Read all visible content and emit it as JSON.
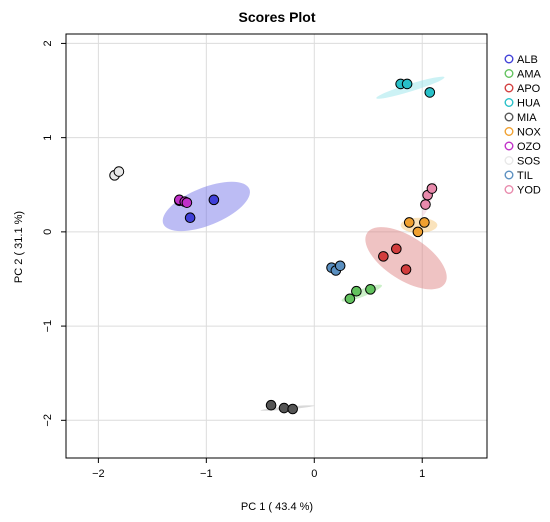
{
  "chart_data": {
    "type": "scatter",
    "title": "Scores Plot",
    "xlabel": "PC 1 ( 43.4 %)",
    "ylabel": "PC 2 ( 31.1 %)",
    "xlim": [
      -2.3,
      1.6
    ],
    "ylim": [
      -2.4,
      2.1
    ],
    "xticks": [
      -2,
      -1,
      0,
      1
    ],
    "yticks": [
      -2,
      -1,
      0,
      1,
      2
    ],
    "grid": true,
    "legend_position": "right",
    "series": [
      {
        "name": "ALB",
        "color": "#4040d8",
        "ellipse": {
          "cx": -1.0,
          "cy": 0.27,
          "rx": 0.43,
          "ry": 0.2,
          "angle": 22,
          "fill": "#6a6ae6"
        },
        "points": [
          [
            -1.25,
            0.33
          ],
          [
            -1.15,
            0.15
          ],
          [
            -0.93,
            0.34
          ]
        ]
      },
      {
        "name": "AMA",
        "color": "#62c25e",
        "ellipse": {
          "cx": 0.44,
          "cy": -0.65,
          "rx": 0.2,
          "ry": 0.04,
          "angle": 21,
          "fill": "#8bde84"
        },
        "points": [
          [
            0.33,
            -0.71
          ],
          [
            0.39,
            -0.63
          ],
          [
            0.52,
            -0.61
          ]
        ]
      },
      {
        "name": "APO",
        "color": "#d23d3d",
        "ellipse": {
          "cx": 0.85,
          "cy": -0.28,
          "rx": 0.43,
          "ry": 0.23,
          "angle": -33,
          "fill": "#dc7a7a"
        },
        "points": [
          [
            0.64,
            -0.26
          ],
          [
            0.76,
            -0.18
          ],
          [
            0.85,
            -0.4
          ]
        ]
      },
      {
        "name": "HUA",
        "color": "#28c0c8",
        "ellipse": {
          "cx": 0.89,
          "cy": 1.53,
          "rx": 0.33,
          "ry": 0.04,
          "angle": 17,
          "fill": "#8fe3e9"
        },
        "points": [
          [
            0.8,
            1.57
          ],
          [
            0.86,
            1.57
          ],
          [
            1.07,
            1.48
          ]
        ]
      },
      {
        "name": "MIA",
        "color": "#555555",
        "ellipse": {
          "cx": -0.25,
          "cy": -1.87,
          "rx": 0.25,
          "ry": 0.015,
          "angle": 5,
          "fill": "#aaaaaa"
        },
        "points": [
          [
            -0.4,
            -1.84
          ],
          [
            -0.28,
            -1.87
          ],
          [
            -0.2,
            -1.88
          ]
        ]
      },
      {
        "name": "NOX",
        "color": "#f0a030",
        "ellipse": {
          "cx": 0.97,
          "cy": 0.07,
          "rx": 0.17,
          "ry": 0.08,
          "angle": 0,
          "fill": "#f5c26a"
        },
        "points": [
          [
            0.88,
            0.1
          ],
          [
            0.96,
            0.0
          ],
          [
            1.02,
            0.1
          ]
        ]
      },
      {
        "name": "OZO",
        "color": "#c030c8",
        "ellipse": null,
        "points": [
          [
            -1.25,
            0.34
          ],
          [
            -1.2,
            0.32
          ],
          [
            -1.18,
            0.31
          ]
        ]
      },
      {
        "name": "SOS",
        "color": "#e8e8e8",
        "ellipse": {
          "cx": -1.85,
          "cy": 0.61,
          "rx": 0.05,
          "ry": 0.02,
          "angle": 20,
          "fill": "#f0f0f0"
        },
        "points": [
          [
            -1.85,
            0.6
          ],
          [
            -1.81,
            0.64
          ]
        ]
      },
      {
        "name": "TIL",
        "color": "#5a8fc0",
        "ellipse": null,
        "points": [
          [
            0.16,
            -0.38
          ],
          [
            0.2,
            -0.41
          ],
          [
            0.24,
            -0.36
          ]
        ]
      },
      {
        "name": "YOD",
        "color": "#e88aac",
        "ellipse": {
          "cx": 1.06,
          "cy": 0.35,
          "rx": 0.17,
          "ry": 0.03,
          "angle": 70,
          "fill": "#f0c7d6"
        },
        "points": [
          [
            1.03,
            0.29
          ],
          [
            1.05,
            0.39
          ],
          [
            1.09,
            0.46
          ]
        ]
      }
    ]
  }
}
